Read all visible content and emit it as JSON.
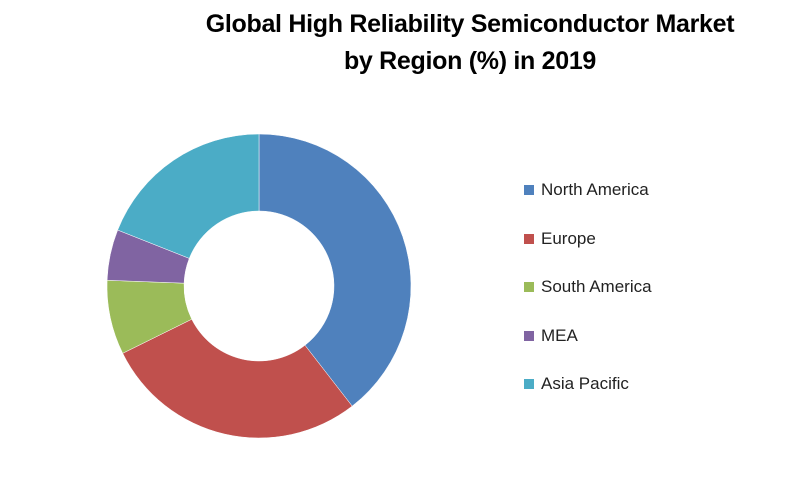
{
  "chart_data": {
    "type": "pie",
    "variant": "donut",
    "title": "Global High Reliability Semiconductor Market by Region (%) in 2019",
    "title_lines": [
      "Global High Reliability Semiconductor Market",
      "by Region (%) in 2019"
    ],
    "categories": [
      "North America",
      "Europe",
      "South America",
      "MEA",
      "Asia Pacific"
    ],
    "values": [
      39.5,
      28.2,
      7.9,
      5.4,
      19.0
    ],
    "unit": "%",
    "colors": [
      "#4f81bd",
      "#c0504d",
      "#9bbb59",
      "#8064a2",
      "#4bacc6"
    ],
    "legend_position": "right",
    "start_angle": "top",
    "direction": "clockwise"
  }
}
